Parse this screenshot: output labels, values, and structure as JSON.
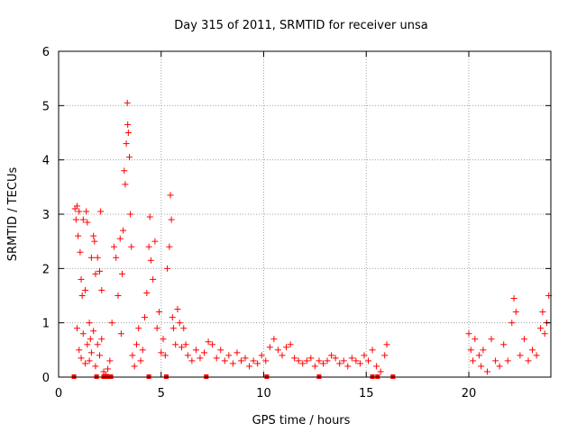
{
  "chart_data": {
    "type": "scatter",
    "title": "Day 315 of 2011, SRMTID for receiver unsa",
    "xlabel": "GPS time / hours",
    "ylabel": "SRMTID / TECUs",
    "xlim": [
      0,
      24
    ],
    "ylim": [
      0,
      6
    ],
    "xticks": [
      0,
      5,
      10,
      15,
      20
    ],
    "yticks": [
      0,
      1,
      2,
      3,
      4,
      5,
      6
    ],
    "grid": true,
    "marker": "+",
    "color": "#ff0000",
    "series": [
      {
        "name": "SRMTID",
        "points": [
          [
            0.8,
            3.1
          ],
          [
            0.85,
            2.9
          ],
          [
            0.9,
            3.15
          ],
          [
            0.95,
            2.6
          ],
          [
            1.0,
            3.05
          ],
          [
            1.05,
            2.3
          ],
          [
            1.1,
            1.8
          ],
          [
            1.15,
            1.5
          ],
          [
            1.2,
            2.9
          ],
          [
            1.3,
            1.6
          ],
          [
            1.35,
            3.05
          ],
          [
            1.4,
            2.85
          ],
          [
            1.5,
            1.0
          ],
          [
            1.55,
            0.7
          ],
          [
            1.6,
            2.2
          ],
          [
            1.7,
            2.6
          ],
          [
            1.75,
            2.5
          ],
          [
            1.8,
            1.9
          ],
          [
            1.9,
            2.2
          ],
          [
            2.0,
            1.95
          ],
          [
            2.05,
            3.05
          ],
          [
            2.1,
            1.6
          ],
          [
            0.9,
            0.9
          ],
          [
            1.0,
            0.5
          ],
          [
            1.1,
            0.35
          ],
          [
            1.2,
            0.8
          ],
          [
            1.3,
            0.25
          ],
          [
            1.4,
            0.6
          ],
          [
            1.5,
            0.3
          ],
          [
            1.6,
            0.45
          ],
          [
            1.7,
            0.85
          ],
          [
            1.8,
            0.2
          ],
          [
            1.9,
            0.6
          ],
          [
            2.0,
            0.4
          ],
          [
            2.1,
            0.7
          ],
          [
            2.2,
            0.1
          ],
          [
            2.3,
            0.05
          ],
          [
            2.4,
            0.15
          ],
          [
            2.5,
            0.3
          ],
          [
            2.6,
            1.0
          ],
          [
            2.7,
            2.4
          ],
          [
            2.8,
            2.2
          ],
          [
            2.9,
            1.5
          ],
          [
            3.0,
            2.55
          ],
          [
            3.05,
            0.8
          ],
          [
            3.1,
            1.9
          ],
          [
            3.15,
            2.7
          ],
          [
            3.2,
            3.8
          ],
          [
            3.25,
            3.55
          ],
          [
            3.3,
            4.3
          ],
          [
            3.35,
            5.05
          ],
          [
            3.37,
            4.65
          ],
          [
            3.4,
            4.5
          ],
          [
            3.45,
            4.05
          ],
          [
            3.5,
            3.0
          ],
          [
            3.55,
            2.4
          ],
          [
            3.6,
            0.4
          ],
          [
            3.7,
            0.2
          ],
          [
            3.8,
            0.6
          ],
          [
            3.9,
            0.9
          ],
          [
            4.0,
            0.3
          ],
          [
            4.1,
            0.5
          ],
          [
            4.2,
            1.1
          ],
          [
            4.3,
            1.55
          ],
          [
            4.4,
            2.4
          ],
          [
            4.45,
            2.95
          ],
          [
            4.5,
            2.15
          ],
          [
            4.6,
            1.8
          ],
          [
            4.7,
            2.5
          ],
          [
            4.8,
            0.9
          ],
          [
            4.9,
            1.2
          ],
          [
            5.0,
            0.45
          ],
          [
            5.1,
            0.7
          ],
          [
            5.2,
            0.4
          ],
          [
            5.3,
            2.0
          ],
          [
            5.4,
            2.4
          ],
          [
            5.45,
            3.35
          ],
          [
            5.5,
            2.9
          ],
          [
            5.55,
            1.1
          ],
          [
            5.6,
            0.9
          ],
          [
            5.7,
            0.6
          ],
          [
            5.8,
            1.25
          ],
          [
            5.9,
            1.0
          ],
          [
            6.0,
            0.55
          ],
          [
            6.1,
            0.9
          ],
          [
            6.2,
            0.6
          ],
          [
            6.3,
            0.4
          ],
          [
            6.5,
            0.3
          ],
          [
            6.7,
            0.5
          ],
          [
            6.9,
            0.35
          ],
          [
            7.1,
            0.45
          ],
          [
            7.3,
            0.65
          ],
          [
            7.5,
            0.6
          ],
          [
            7.7,
            0.35
          ],
          [
            7.9,
            0.5
          ],
          [
            8.1,
            0.3
          ],
          [
            8.3,
            0.4
          ],
          [
            8.5,
            0.25
          ],
          [
            8.7,
            0.45
          ],
          [
            8.9,
            0.3
          ],
          [
            9.1,
            0.35
          ],
          [
            9.3,
            0.2
          ],
          [
            9.5,
            0.3
          ],
          [
            9.7,
            0.25
          ],
          [
            9.9,
            0.4
          ],
          [
            10.1,
            0.3
          ],
          [
            10.3,
            0.55
          ],
          [
            10.5,
            0.7
          ],
          [
            10.7,
            0.5
          ],
          [
            10.9,
            0.4
          ],
          [
            11.1,
            0.55
          ],
          [
            11.3,
            0.6
          ],
          [
            11.5,
            0.35
          ],
          [
            11.7,
            0.3
          ],
          [
            11.9,
            0.25
          ],
          [
            12.1,
            0.3
          ],
          [
            12.3,
            0.35
          ],
          [
            12.5,
            0.2
          ],
          [
            12.7,
            0.3
          ],
          [
            12.9,
            0.25
          ],
          [
            13.1,
            0.3
          ],
          [
            13.3,
            0.4
          ],
          [
            13.5,
            0.35
          ],
          [
            13.7,
            0.25
          ],
          [
            13.9,
            0.3
          ],
          [
            14.1,
            0.2
          ],
          [
            14.3,
            0.35
          ],
          [
            14.5,
            0.3
          ],
          [
            14.7,
            0.25
          ],
          [
            14.9,
            0.4
          ],
          [
            15.1,
            0.3
          ],
          [
            15.3,
            0.5
          ],
          [
            15.5,
            0.2
          ],
          [
            15.7,
            0.1
          ],
          [
            15.9,
            0.4
          ],
          [
            16.0,
            0.6
          ],
          [
            20.0,
            0.8
          ],
          [
            20.1,
            0.5
          ],
          [
            20.2,
            0.3
          ],
          [
            20.3,
            0.7
          ],
          [
            20.5,
            0.4
          ],
          [
            20.6,
            0.2
          ],
          [
            20.7,
            0.5
          ],
          [
            20.9,
            0.1
          ],
          [
            21.1,
            0.7
          ],
          [
            21.3,
            0.3
          ],
          [
            21.5,
            0.2
          ],
          [
            21.7,
            0.6
          ],
          [
            21.9,
            0.3
          ],
          [
            22.1,
            1.0
          ],
          [
            22.2,
            1.45
          ],
          [
            22.3,
            1.2
          ],
          [
            22.5,
            0.4
          ],
          [
            22.7,
            0.7
          ],
          [
            22.9,
            0.3
          ],
          [
            23.1,
            0.5
          ],
          [
            23.3,
            0.4
          ],
          [
            23.5,
            0.9
          ],
          [
            23.6,
            1.2
          ],
          [
            23.7,
            0.8
          ],
          [
            23.8,
            1.0
          ],
          [
            23.9,
            1.5
          ]
        ],
        "zero_points": [
          0.75,
          1.85,
          2.2,
          2.4,
          2.55,
          4.4,
          5.25,
          7.2,
          10.15,
          12.7,
          15.3,
          15.55,
          16.3
        ]
      }
    ]
  }
}
